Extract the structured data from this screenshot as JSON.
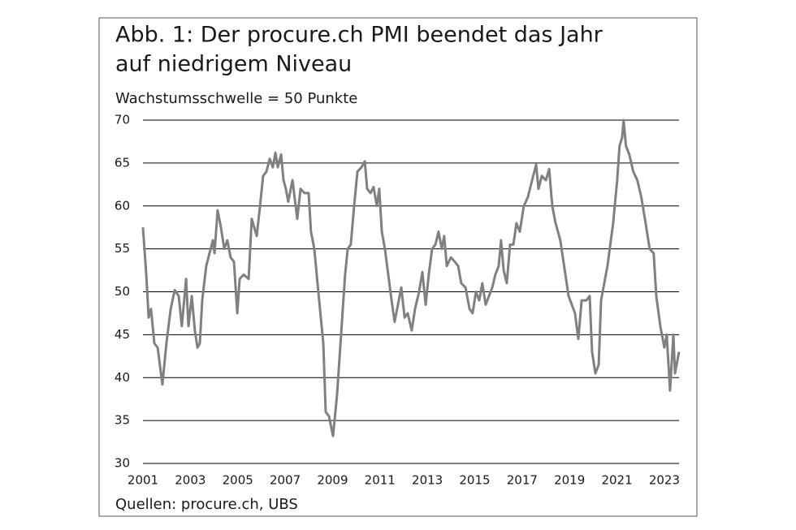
{
  "chart_data": {
    "type": "line",
    "title": [
      "Abb. 1: Der procure.ch PMI beendet das Jahr",
      "auf niedrigem Niveau"
    ],
    "subtitle": "Wachstumsschwelle = 50 Punkte",
    "source": "Quellen: procure.ch, UBS",
    "xlim": [
      2001,
      2023.62
    ],
    "xticks": [
      2001,
      2003,
      2005,
      2007,
      2009,
      2011,
      2013,
      2015,
      2017,
      2019,
      2021,
      2023
    ],
    "ylim": [
      30,
      70
    ],
    "yticks": [
      30,
      35,
      40,
      45,
      50,
      55,
      60,
      65,
      70
    ],
    "grid": true,
    "series": [
      {
        "color": "#808080",
        "x": [
          2001.0,
          2001.14,
          2001.24,
          2001.34,
          2001.48,
          2001.62,
          2001.82,
          2001.99,
          2002.17,
          2002.34,
          2002.51,
          2002.64,
          2002.82,
          2002.92,
          2003.06,
          2003.19,
          2003.3,
          2003.4,
          2003.5,
          2003.67,
          2003.81,
          2003.95,
          2004.02,
          2004.15,
          2004.29,
          2004.43,
          2004.56,
          2004.7,
          2004.84,
          2004.98,
          2005.08,
          2005.25,
          2005.46,
          2005.59,
          2005.8,
          2005.94,
          2006.07,
          2006.21,
          2006.35,
          2006.48,
          2006.59,
          2006.69,
          2006.83,
          2006.93,
          2007.03,
          2007.13,
          2007.31,
          2007.51,
          2007.65,
          2007.82,
          2007.99,
          2008.09,
          2008.23,
          2008.4,
          2008.61,
          2008.71,
          2008.85,
          2009.02,
          2009.19,
          2009.36,
          2009.53,
          2009.64,
          2009.77,
          2009.91,
          2010.05,
          2010.22,
          2010.36,
          2010.46,
          2010.6,
          2010.73,
          2010.87,
          2010.97,
          2011.08,
          2011.21,
          2011.35,
          2011.49,
          2011.62,
          2011.76,
          2011.9,
          2012.04,
          2012.17,
          2012.34,
          2012.48,
          2012.65,
          2012.79,
          2012.93,
          2013.06,
          2013.2,
          2013.34,
          2013.47,
          2013.61,
          2013.71,
          2013.82,
          2013.99,
          2014.16,
          2014.3,
          2014.43,
          2014.61,
          2014.78,
          2014.91,
          2015.05,
          2015.19,
          2015.32,
          2015.46,
          2015.6,
          2015.74,
          2015.87,
          2016.01,
          2016.11,
          2016.22,
          2016.35,
          2016.49,
          2016.63,
          2016.76,
          2016.9,
          2017.07,
          2017.24,
          2017.42,
          2017.59,
          2017.69,
          2017.83,
          2018.0,
          2018.14,
          2018.27,
          2018.41,
          2018.61,
          2018.96,
          2019.23,
          2019.37,
          2019.51,
          2019.71,
          2019.85,
          2019.95,
          2020.09,
          2020.23,
          2020.33,
          2020.6,
          2020.84,
          2021.01,
          2021.11,
          2021.22,
          2021.28,
          2021.38,
          2021.52,
          2021.69,
          2021.86,
          2022.03,
          2022.21,
          2022.38,
          2022.55,
          2022.66,
          2022.83,
          2023.0,
          2023.1,
          2023.24,
          2023.38,
          2023.45,
          2023.62
        ],
        "values": [
          57.5,
          52,
          47,
          48,
          44,
          43.5,
          39.2,
          44,
          48,
          50.2,
          49.5,
          46,
          51.5,
          46,
          49.5,
          45.5,
          43.5,
          44,
          49,
          53,
          54.5,
          56,
          54.5,
          59.5,
          57.5,
          55,
          56,
          54,
          53.5,
          47.5,
          51.5,
          52,
          51.5,
          58.5,
          56.5,
          60,
          63.5,
          64,
          65.5,
          64.5,
          66.2,
          64.5,
          66,
          63,
          62,
          60.5,
          63,
          58.5,
          62,
          61.5,
          61.5,
          57,
          55,
          50,
          44,
          36,
          35.5,
          33.2,
          38,
          45,
          52,
          55,
          55.5,
          60,
          64,
          64.5,
          65.2,
          62,
          61.5,
          62.2,
          60,
          62,
          57,
          55,
          52,
          49,
          46.5,
          48.5,
          50.5,
          47,
          47.5,
          45.5,
          48,
          50,
          52.3,
          48.5,
          52,
          55,
          55.5,
          57,
          55,
          56.5,
          53,
          54,
          53.5,
          53,
          51,
          50.5,
          48,
          47.5,
          50,
          49,
          51,
          48.5,
          49.5,
          50.5,
          52,
          53,
          56,
          52.5,
          51,
          55.5,
          55.5,
          58,
          57,
          60,
          61,
          63,
          64.8,
          62,
          63.5,
          63,
          64.3,
          60,
          58,
          56,
          49.5,
          47.5,
          44.5,
          49,
          49,
          49.5,
          43,
          40.5,
          41.5,
          49,
          53,
          58,
          63,
          67,
          68,
          70,
          67,
          66,
          64,
          63,
          61,
          58,
          55,
          54.5,
          49.5,
          46,
          43.5,
          45,
          38.5,
          45,
          40.5,
          43
        ]
      }
    ]
  }
}
